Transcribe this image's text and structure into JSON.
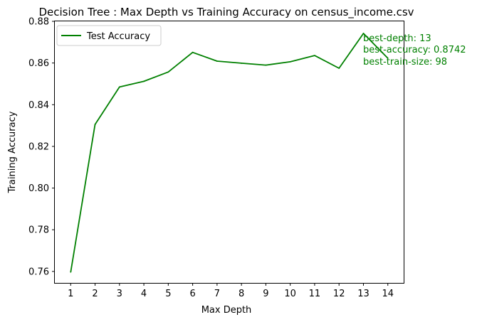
{
  "chart_data": {
    "type": "line",
    "title": "Decision Tree : Max Depth vs Training Accuracy on census_income.csv",
    "xlabel": "Max Depth",
    "ylabel": "Training Accuracy",
    "xlim": [
      0.35,
      14.65
    ],
    "ylim": [
      0.7545,
      0.88
    ],
    "x_ticks": [
      1,
      2,
      3,
      4,
      5,
      6,
      7,
      8,
      9,
      10,
      11,
      12,
      13,
      14
    ],
    "y_ticks": [
      0.76,
      0.78,
      0.8,
      0.82,
      0.84,
      0.86,
      0.88
    ],
    "y_tick_labels": [
      "0.76",
      "0.78",
      "0.80",
      "0.82",
      "0.84",
      "0.86",
      "0.88"
    ],
    "grid": false,
    "legend": {
      "position": "upper-left"
    },
    "series": [
      {
        "name": "Test Accuracy",
        "color": "#008000",
        "x": [
          1,
          2,
          3,
          4,
          5,
          6,
          7,
          8,
          9,
          10,
          11,
          12,
          13,
          14
        ],
        "y": [
          0.7597,
          0.8305,
          0.8485,
          0.8512,
          0.8557,
          0.8651,
          0.8609,
          0.8599,
          0.859,
          0.8606,
          0.8636,
          0.8575,
          0.8742,
          0.8623
        ]
      }
    ],
    "annotation": {
      "color": "#008000",
      "lines": [
        "best-depth: 13",
        "best-accuracy: 0.8742",
        "best-train-size: 98"
      ]
    }
  }
}
